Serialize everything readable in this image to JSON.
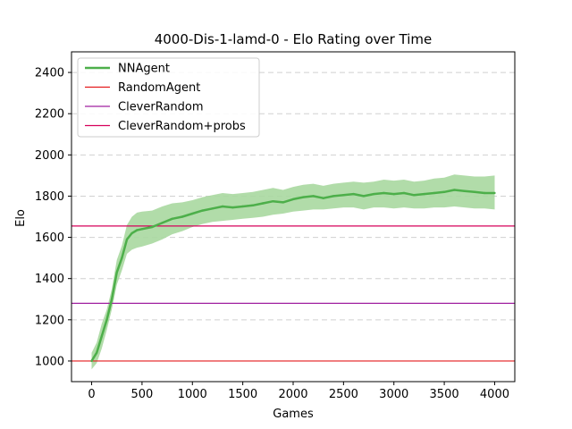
{
  "chart_data": {
    "type": "line",
    "title": "4000-Dis-1-lamd-0 - Elo Rating over Time",
    "xlabel": "Games",
    "ylabel": "Elo",
    "xlim": [
      -200,
      4200
    ],
    "ylim": [
      900,
      2500
    ],
    "xticks": [
      0,
      500,
      1000,
      1500,
      2000,
      2500,
      3000,
      3500,
      4000
    ],
    "yticks": [
      1000,
      1200,
      1400,
      1600,
      1800,
      2000,
      2200,
      2400
    ],
    "grid": "y-dashed",
    "legend_position": "top-left",
    "series": [
      {
        "name": "NNAgent",
        "color": "#4daf4a",
        "band_color": "#a8d8a0",
        "x": [
          0,
          50,
          100,
          150,
          200,
          250,
          300,
          350,
          400,
          450,
          500,
          600,
          700,
          800,
          900,
          1000,
          1100,
          1200,
          1300,
          1400,
          1500,
          1600,
          1700,
          1800,
          1900,
          2000,
          2100,
          2200,
          2300,
          2400,
          2500,
          2600,
          2700,
          2800,
          2900,
          3000,
          3100,
          3200,
          3300,
          3400,
          3500,
          3600,
          3700,
          3800,
          3900,
          4000
        ],
        "values": [
          1000,
          1040,
          1120,
          1200,
          1300,
          1430,
          1500,
          1590,
          1620,
          1635,
          1640,
          1650,
          1670,
          1690,
          1700,
          1715,
          1730,
          1740,
          1750,
          1745,
          1750,
          1755,
          1765,
          1775,
          1770,
          1785,
          1795,
          1800,
          1790,
          1800,
          1805,
          1810,
          1800,
          1810,
          1815,
          1810,
          1815,
          1805,
          1810,
          1815,
          1820,
          1830,
          1825,
          1820,
          1815,
          1815
        ],
        "lower": [
          960,
          990,
          1060,
          1150,
          1250,
          1370,
          1440,
          1520,
          1540,
          1550,
          1555,
          1570,
          1590,
          1615,
          1630,
          1650,
          1665,
          1675,
          1680,
          1685,
          1690,
          1695,
          1700,
          1710,
          1715,
          1725,
          1730,
          1735,
          1735,
          1740,
          1745,
          1745,
          1735,
          1745,
          1745,
          1740,
          1745,
          1740,
          1740,
          1745,
          1745,
          1750,
          1745,
          1740,
          1740,
          1735
        ],
        "upper": [
          1040,
          1090,
          1180,
          1250,
          1350,
          1490,
          1560,
          1660,
          1700,
          1720,
          1725,
          1730,
          1750,
          1765,
          1770,
          1780,
          1795,
          1805,
          1815,
          1810,
          1815,
          1820,
          1830,
          1840,
          1830,
          1845,
          1855,
          1860,
          1850,
          1860,
          1865,
          1870,
          1865,
          1870,
          1880,
          1875,
          1880,
          1870,
          1875,
          1885,
          1890,
          1905,
          1900,
          1895,
          1895,
          1900
        ]
      },
      {
        "name": "RandomAgent",
        "color": "#e41a1c",
        "hline": 1000
      },
      {
        "name": "CleverRandom",
        "color": "#a020a0",
        "hline": 1280
      },
      {
        "name": "CleverRandom+probs",
        "color": "#d6005a",
        "hline": 1655
      }
    ]
  }
}
